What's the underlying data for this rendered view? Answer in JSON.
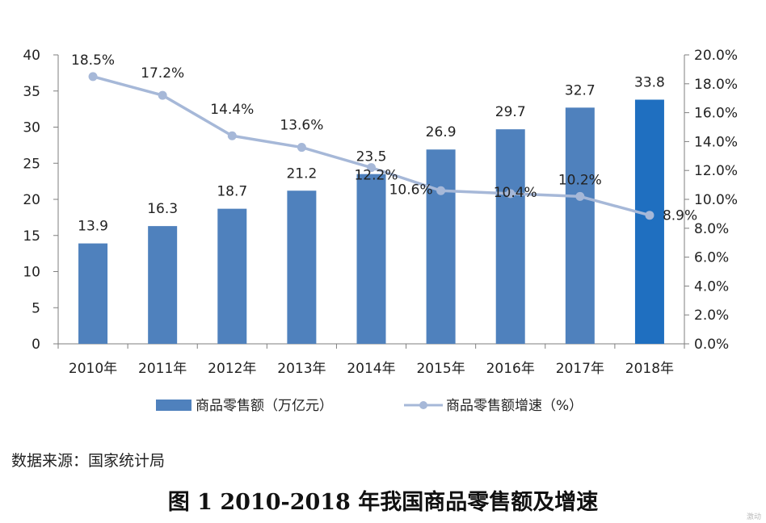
{
  "chart_data": {
    "type": "bar",
    "title": "",
    "categories": [
      "2010年",
      "2011年",
      "2012年",
      "2013年",
      "2014年",
      "2015年",
      "2016年",
      "2017年",
      "2018年"
    ],
    "series": [
      {
        "name": "商品零售额（万亿元）",
        "type": "bar",
        "axis": "left",
        "values": [
          13.9,
          16.3,
          18.7,
          21.2,
          23.5,
          26.9,
          29.7,
          32.7,
          33.8
        ],
        "labels": [
          "13.9",
          "16.3",
          "18.7",
          "21.2",
          "23.5",
          "26.9",
          "29.7",
          "32.7",
          "33.8"
        ],
        "color": "#4f81bd",
        "highlight_color": "#1f6fc0",
        "highlight_index": 8
      },
      {
        "name": "商品零售额增速（%）",
        "type": "line",
        "axis": "right",
        "values": [
          18.5,
          17.2,
          14.4,
          13.6,
          12.2,
          10.6,
          10.4,
          10.2,
          8.9
        ],
        "labels": [
          "18.5%",
          "17.2%",
          "14.4%",
          "13.6%",
          "12.2%",
          "10.6%",
          "10.4%",
          "10.2%",
          "8.9%"
        ],
        "color": "#a6b8d8"
      }
    ],
    "y_left": {
      "min": 0,
      "max": 40,
      "ticks": [
        "0",
        "5",
        "10",
        "15",
        "20",
        "25",
        "30",
        "35",
        "40"
      ]
    },
    "y_right": {
      "min": 0,
      "max": 20,
      "ticks": [
        "0.0%",
        "2.0%",
        "4.0%",
        "6.0%",
        "8.0%",
        "10.0%",
        "12.0%",
        "14.0%",
        "16.0%",
        "18.0%",
        "20.0%"
      ]
    },
    "legend": [
      "商品零售额（万亿元）",
      "商品零售额增速（%）"
    ],
    "legend_position": "bottom",
    "grid": false
  },
  "source": "数据来源：国家统计局",
  "caption": "图 1 2010-2018 年我国商品零售额及增速",
  "watermark": "激动"
}
